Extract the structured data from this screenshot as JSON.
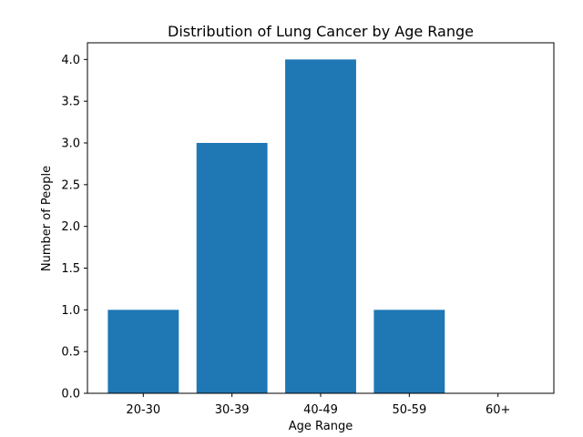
{
  "chart_data": {
    "type": "bar",
    "title": "Distribution of Lung Cancer by Age Range",
    "xlabel": "Age Range",
    "ylabel": "Number of People",
    "categories": [
      "20-30",
      "30-39",
      "40-49",
      "50-59",
      "60+"
    ],
    "values": [
      1,
      3,
      4,
      1,
      0
    ],
    "ylim": [
      0,
      4.2
    ],
    "yticks": [
      "0.0",
      "0.5",
      "1.0",
      "1.5",
      "2.0",
      "2.5",
      "3.0",
      "3.5",
      "4.0"
    ],
    "grid": false,
    "legend": "none",
    "bar_color": "#1f77b4"
  }
}
